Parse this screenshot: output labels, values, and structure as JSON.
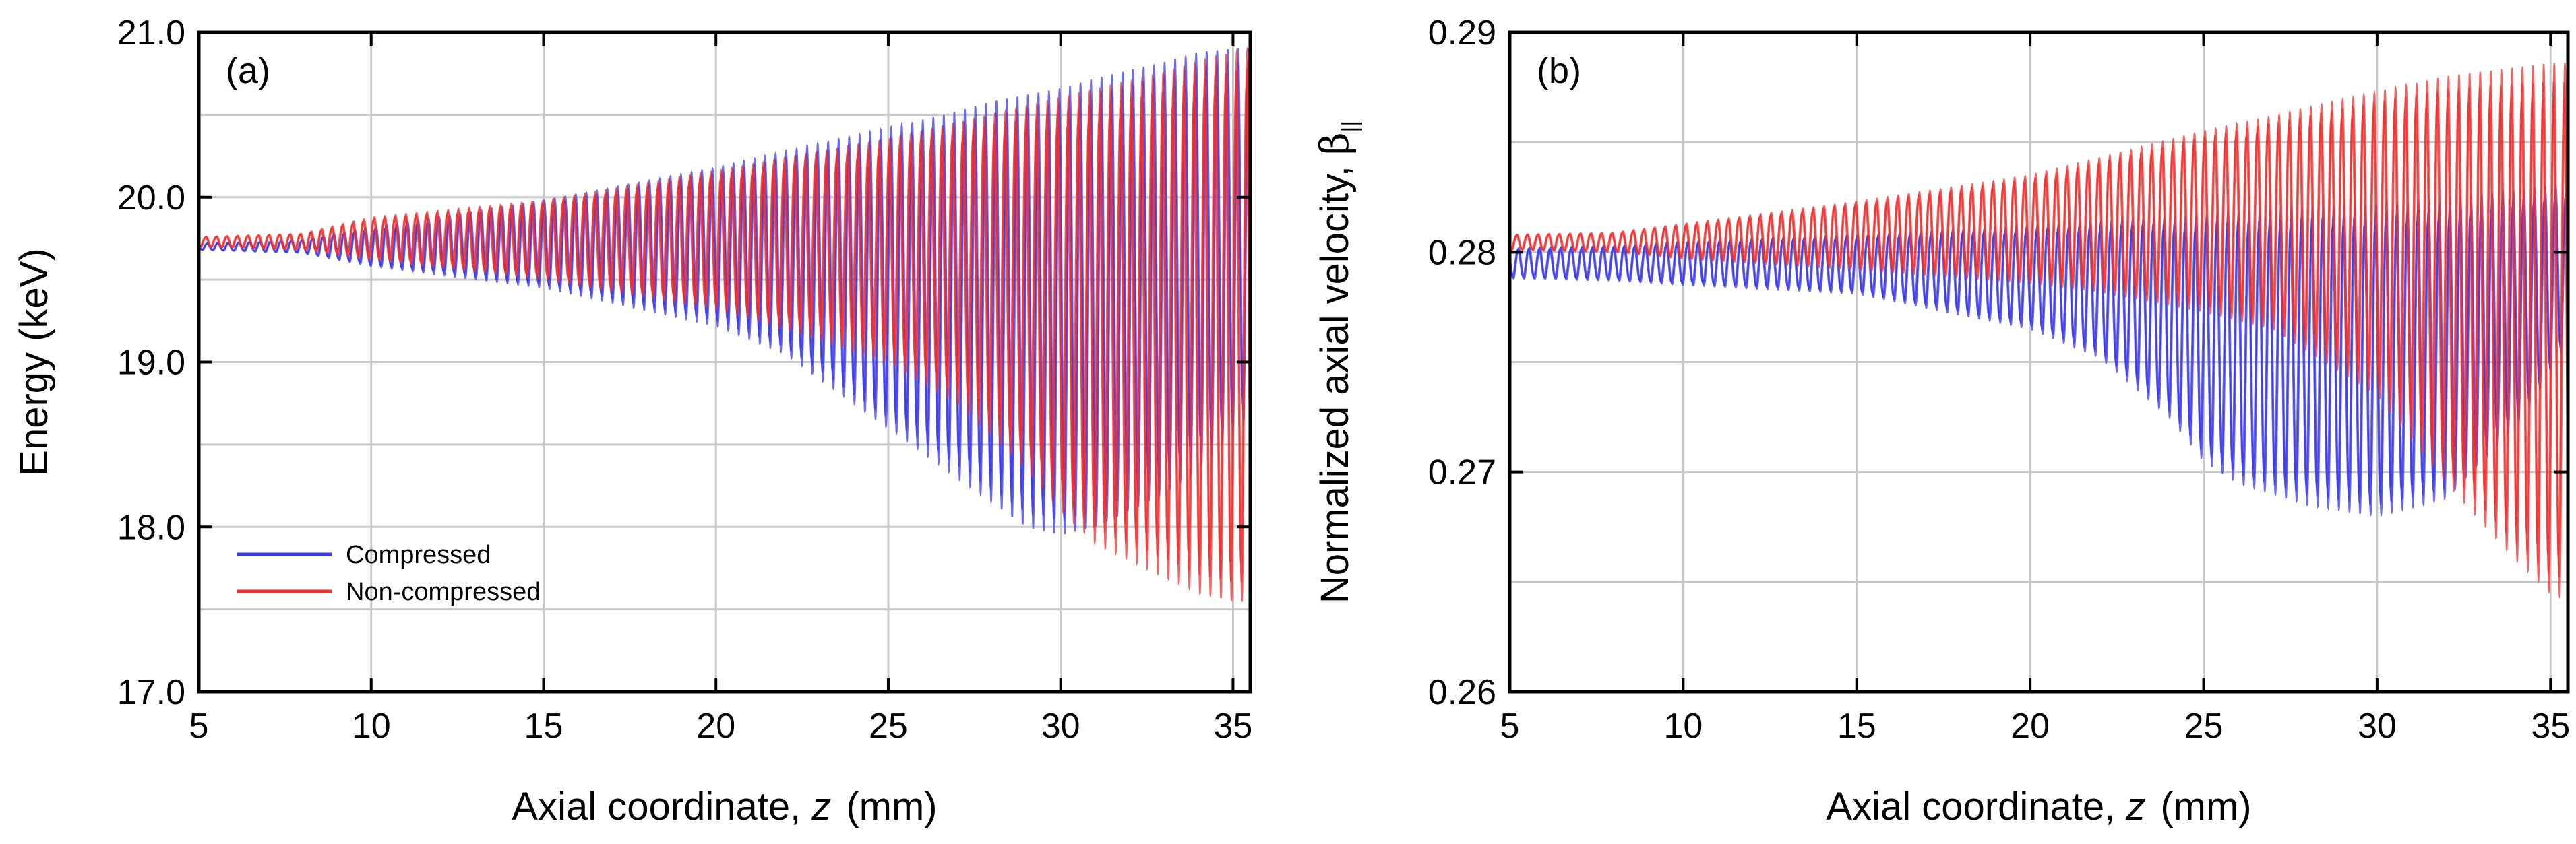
{
  "chart_data": [
    {
      "type": "line",
      "panel_label": "(a)",
      "xlabel_prefix": "Axial coordinate, ",
      "xlabel_var": "z",
      "xlabel_unit": "(mm)",
      "ylabel": "Energy (keV)",
      "xlim": [
        5,
        35.5
      ],
      "ylim": [
        17.0,
        21.0
      ],
      "xticks": [
        5,
        10,
        15,
        20,
        25,
        30,
        35
      ],
      "xtick_labels": [
        "5",
        "10",
        "15",
        "20",
        "25",
        "30",
        "35"
      ],
      "yticks": [
        17.0,
        18.0,
        19.0,
        20.0,
        21.0
      ],
      "ytick_labels": [
        "17.0",
        "18.0",
        "19.0",
        "20.0",
        "21.0"
      ],
      "grid": true,
      "legend_position": "lower-left",
      "series": [
        {
          "name": "Compressed",
          "color": "#3a3ae8",
          "mean": 19.7,
          "envelope": {
            "z": [
              5,
              8,
              10,
              15,
              20,
              22,
              25,
              27,
              28,
              29,
              30,
              31,
              33,
              34,
              35,
              35.5
            ],
            "upper": [
              19.72,
              19.74,
              19.82,
              19.98,
              20.18,
              20.28,
              20.42,
              20.52,
              20.58,
              20.62,
              20.66,
              20.72,
              20.82,
              20.88,
              20.9,
              20.9
            ],
            "lower": [
              19.68,
              19.66,
              19.58,
              19.45,
              19.22,
              19.05,
              18.6,
              18.3,
              18.15,
              18.0,
              17.95,
              18.0,
              18.2,
              18.35,
              18.55,
              18.7
            ]
          }
        },
        {
          "name": "Non-compressed",
          "color": "#ee3030",
          "mean": 19.72,
          "envelope": {
            "z": [
              5,
              8,
              10,
              15,
              20,
              22,
              25,
              27,
              28,
              29,
              30,
              31,
              33,
              34,
              35,
              35.5
            ],
            "upper": [
              19.76,
              19.78,
              19.88,
              19.98,
              20.16,
              20.24,
              20.35,
              20.45,
              20.5,
              20.55,
              20.6,
              20.65,
              20.75,
              20.82,
              20.88,
              20.9
            ],
            "lower": [
              19.7,
              19.68,
              19.62,
              19.5,
              19.32,
              19.2,
              19.0,
              18.75,
              18.55,
              18.35,
              18.1,
              17.9,
              17.7,
              17.6,
              17.55,
              17.55
            ]
          }
        }
      ]
    },
    {
      "type": "line",
      "panel_label": "(b)",
      "xlabel_prefix": "Axial coordinate, ",
      "xlabel_var": "z",
      "xlabel_unit": "(mm)",
      "ylabel_main": "Normalized axial velocity, ",
      "ylabel_symbol": "β",
      "ylabel_subscript": "||",
      "xlim": [
        5,
        35.5
      ],
      "ylim": [
        0.26,
        0.29
      ],
      "xticks": [
        5,
        10,
        15,
        20,
        25,
        30,
        35
      ],
      "xtick_labels": [
        "5",
        "10",
        "15",
        "20",
        "25",
        "30",
        "35"
      ],
      "yticks": [
        0.26,
        0.27,
        0.28,
        0.29
      ],
      "ytick_labels": [
        "0.26",
        "0.27",
        "0.28",
        "0.29"
      ],
      "grid": true,
      "series": [
        {
          "name": "Compressed",
          "color": "#3a3ae8",
          "mean": 0.2798,
          "envelope": {
            "z": [
              5,
              8,
              10,
              15,
              20,
              22,
              24,
              25,
              26,
              28,
              30,
              32,
              33,
              34,
              35,
              35.5
            ],
            "upper": [
              0.2802,
              0.2803,
              0.2805,
              0.2808,
              0.2812,
              0.2814,
              0.2816,
              0.2817,
              0.2818,
              0.282,
              0.2822,
              0.2824,
              0.2826,
              0.2828,
              0.283,
              0.283
            ],
            "lower": [
              0.2788,
              0.2787,
              0.2785,
              0.2781,
              0.2765,
              0.2752,
              0.2725,
              0.2705,
              0.2695,
              0.2685,
              0.268,
              0.2688,
              0.2705,
              0.272,
              0.2745,
              0.276
            ]
          }
        },
        {
          "name": "Non-compressed",
          "color": "#ee3030",
          "mean": 0.2803,
          "envelope": {
            "z": [
              5,
              8,
              10,
              15,
              20,
              22,
              25,
              27,
              30,
              32,
              34,
              35,
              35.5
            ],
            "upper": [
              0.2808,
              0.2809,
              0.2813,
              0.2823,
              0.2835,
              0.2843,
              0.2855,
              0.2862,
              0.2873,
              0.288,
              0.2884,
              0.2886,
              0.2886
            ],
            "lower": [
              0.2801,
              0.28,
              0.2797,
              0.2792,
              0.2786,
              0.2782,
              0.2773,
              0.2765,
              0.2735,
              0.2695,
              0.266,
              0.2645,
              0.2642
            ]
          }
        }
      ]
    }
  ]
}
